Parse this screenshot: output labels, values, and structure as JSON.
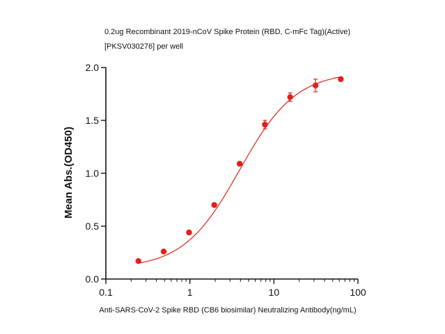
{
  "chart_data": {
    "type": "scatter",
    "title_lines": [
      "0.2ug Recombinant 2019-nCoV Spike Protein (RBD, C-mFc Tag)(Active)",
      "[PKSV030276] per well"
    ],
    "xlabel": "Anti-SARS-CoV-2 Spike RBD (CB6 biosimilar)  Neutralizing Antibody(ng/mL)",
    "ylabel": "Mean Abs.(OD450)",
    "x_scale": "log",
    "xlim": [
      0.1,
      100
    ],
    "ylim": [
      0.0,
      2.0
    ],
    "x_ticks": [
      0.1,
      1,
      10,
      100
    ],
    "x_tick_labels": [
      "0.1",
      "1",
      "10",
      "100"
    ],
    "y_ticks": [
      0.0,
      0.5,
      1.0,
      1.5,
      2.0
    ],
    "y_tick_labels": [
      "0.0",
      "0.5",
      "1.0",
      "1.5",
      "2.0"
    ],
    "grid": false,
    "series": [
      {
        "x": [
          0.244,
          0.488,
          0.977,
          1.95,
          3.91,
          7.81,
          15.6,
          31.3,
          62.5
        ],
        "y": [
          0.17,
          0.26,
          0.44,
          0.7,
          1.09,
          1.46,
          1.72,
          1.83,
          1.89
        ],
        "error": [
          0.01,
          0.01,
          0.01,
          0.01,
          0.01,
          0.04,
          0.04,
          0.06,
          0.01
        ],
        "color": "#e0201a",
        "fit": "4PL"
      }
    ]
  }
}
